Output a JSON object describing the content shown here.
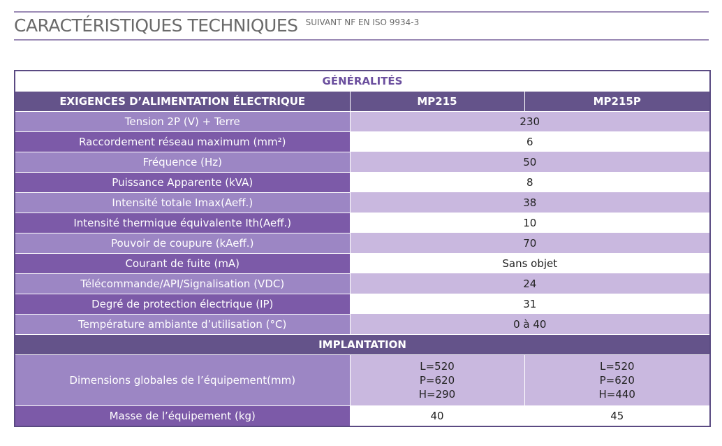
{
  "header": {
    "title": "CARACTÉRISTIQUES TECHNIQUES",
    "subtitle": "SUIVANT NF EN ISO 9934-3"
  },
  "table": {
    "section_general": "GÉNÉRALITÉS",
    "columns": {
      "requirements": "EXIGENCES D’ALIMENTATION ÉLECTRIQUE",
      "model_a": "MP215",
      "model_b": "MP215P"
    },
    "rows": [
      {
        "label": "Tension 2P (V) + Terre",
        "value": "230"
      },
      {
        "label": "Raccordement réseau maximum (mm²)",
        "value": "6"
      },
      {
        "label": "Fréquence (Hz)",
        "value": "50"
      },
      {
        "label": "Puissance Apparente (kVA)",
        "value": "8"
      },
      {
        "label": "Intensité totale Imax(Aeff.)",
        "value": "38"
      },
      {
        "label": "Intensité thermique équivalente Ith(Aeff.)",
        "value": "10"
      },
      {
        "label": "Pouvoir de coupure (kAeff.)",
        "value": "70"
      },
      {
        "label": "Courant de fuite (mA)",
        "value": "Sans objet"
      },
      {
        "label": "Télécommande/API/Signalisation (VDC)",
        "value": "24"
      },
      {
        "label": "Degré de protection électrique (IP)",
        "value": "31"
      },
      {
        "label": "Température ambiante d’utilisation (°C)",
        "value": "0 à 40"
      }
    ],
    "section_implantation": "IMPLANTATION",
    "dimensions": {
      "label": "Dimensions globales de l’équipement(mm)",
      "model_a": {
        "L": "L=520",
        "P": "P=620",
        "H": "H=290"
      },
      "model_b": {
        "L": "L=520",
        "P": "P=620",
        "H": "H=440"
      }
    },
    "mass": {
      "label": "Masse de l’équipement (kg)",
      "model_a": "40",
      "model_b": "45"
    }
  },
  "colors": {
    "accent_dark": "#64538a",
    "accent_mid": "#7c5aa8",
    "accent_light": "#9c86c4",
    "accent_pale": "#c9b8df",
    "rule": "#9b8ab5"
  }
}
